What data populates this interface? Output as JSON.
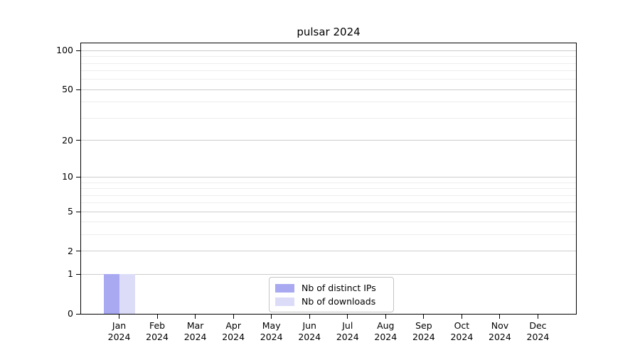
{
  "figure": {
    "background": "#ffffff"
  },
  "chart_data": {
    "type": "bar",
    "title": "pulsar 2024",
    "categories": [
      "Jan 2024",
      "Feb 2024",
      "Mar 2024",
      "Apr 2024",
      "May 2024",
      "Jun 2024",
      "Jul 2024",
      "Aug 2024",
      "Sep 2024",
      "Oct 2024",
      "Nov 2024",
      "Dec 2024"
    ],
    "months": [
      "Jan",
      "Feb",
      "Mar",
      "Apr",
      "May",
      "Jun",
      "Jul",
      "Aug",
      "Sep",
      "Oct",
      "Nov",
      "Dec"
    ],
    "year": "2024",
    "series": [
      {
        "name": "Nb of distinct IPs",
        "color": "#a9a9f2",
        "values": [
          1,
          0,
          0,
          0,
          0,
          0,
          0,
          0,
          0,
          0,
          0,
          0
        ]
      },
      {
        "name": "Nb of downloads",
        "color": "#dcdcf8",
        "values": [
          1,
          0,
          0,
          0,
          0,
          0,
          0,
          0,
          0,
          0,
          0,
          0
        ]
      }
    ],
    "xlabel": "",
    "ylabel": "",
    "yaxis": {
      "scale": "log1p",
      "ticks": [
        0,
        1,
        2,
        5,
        10,
        20,
        50,
        100
      ],
      "minor_ticks": [
        3,
        4,
        6,
        7,
        8,
        9,
        30,
        40,
        60,
        70,
        80,
        90
      ],
      "ylim": [
        0,
        114
      ]
    },
    "grid": {
      "show": true,
      "major_color": "#cccccc",
      "minor_color": "#ededed"
    },
    "legend": {
      "position": "lower center",
      "entries": [
        "Nb of distinct IPs",
        "Nb of downloads"
      ]
    }
  }
}
